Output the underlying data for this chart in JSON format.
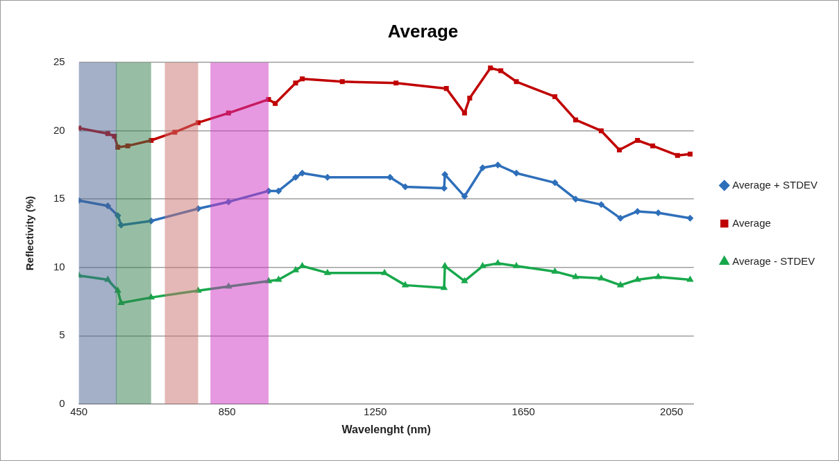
{
  "chart_data": {
    "type": "line",
    "title": "Average",
    "xlabel": "Wavelenght (nm)",
    "ylabel": "Reflectivity (%)",
    "xlim": [
      450,
      2110
    ],
    "xticks": [
      450,
      850,
      1250,
      1650,
      2050
    ],
    "ylim": [
      0,
      25
    ],
    "yticks": [
      0,
      5,
      10,
      15,
      20,
      25
    ],
    "grid": "y",
    "legend": "right",
    "line_style": "solid",
    "bands": [
      {
        "axis": "x",
        "from": 450,
        "to": 552,
        "color": "#47628f"
      },
      {
        "axis": "x",
        "from": 550,
        "to": 645,
        "color": "#2f7d4b"
      },
      {
        "axis": "x",
        "from": 682,
        "to": 772,
        "color": "#c9716d"
      },
      {
        "axis": "x",
        "from": 805,
        "to": 962,
        "color": "#cd33c1"
      }
    ],
    "series": [
      {
        "name": "Average + STDEV",
        "color": "#2e6fba",
        "marker": "diamond",
        "x": [
          450,
          528,
          555,
          564,
          645,
          772,
          854,
          962,
          989,
          1035,
          1053,
          1121,
          1290,
          1331,
          1436,
          1438,
          1491,
          1540,
          1581,
          1631,
          1735,
          1791,
          1860,
          1912,
          1958,
          2014,
          2100
        ],
        "values": [
          14.9,
          14.5,
          13.8,
          13.1,
          13.4,
          14.3,
          14.8,
          15.6,
          15.6,
          16.6,
          16.9,
          16.6,
          16.6,
          15.9,
          15.8,
          16.8,
          15.2,
          17.3,
          17.5,
          16.9,
          16.2,
          15.0,
          14.6,
          13.6,
          14.1,
          14.0,
          13.6
        ]
      },
      {
        "name": "Average",
        "color": "#c00000",
        "marker": "square",
        "x": [
          450,
          528,
          546,
          555,
          582,
          645,
          709,
          772,
          854,
          962,
          980,
          1035,
          1053,
          1161,
          1306,
          1442,
          1491,
          1505,
          1561,
          1589,
          1631,
          1735,
          1791,
          1860,
          1909,
          1958,
          1999,
          2066,
          2100
        ],
        "values": [
          20.2,
          19.8,
          19.6,
          18.8,
          18.9,
          19.3,
          19.9,
          20.6,
          21.3,
          22.3,
          22.0,
          23.5,
          23.8,
          23.6,
          23.5,
          23.1,
          21.3,
          22.4,
          24.6,
          24.4,
          23.6,
          22.5,
          20.8,
          20.0,
          18.6,
          19.3,
          18.9,
          18.2,
          18.3
        ]
      },
      {
        "name": "Average - STDEV",
        "color": "#18a84c",
        "marker": "triangle",
        "x": [
          450,
          528,
          555,
          564,
          645,
          772,
          854,
          962,
          989,
          1035,
          1053,
          1121,
          1275,
          1331,
          1436,
          1438,
          1491,
          1540,
          1581,
          1631,
          1735,
          1791,
          1860,
          1912,
          1958,
          2014,
          2100
        ],
        "values": [
          9.4,
          9.1,
          8.3,
          7.4,
          7.8,
          8.3,
          8.6,
          9.0,
          9.1,
          9.8,
          10.1,
          9.6,
          9.6,
          8.7,
          8.5,
          10.1,
          9.0,
          10.1,
          10.3,
          10.1,
          9.7,
          9.3,
          9.2,
          8.7,
          9.1,
          9.3,
          9.1
        ]
      }
    ]
  }
}
